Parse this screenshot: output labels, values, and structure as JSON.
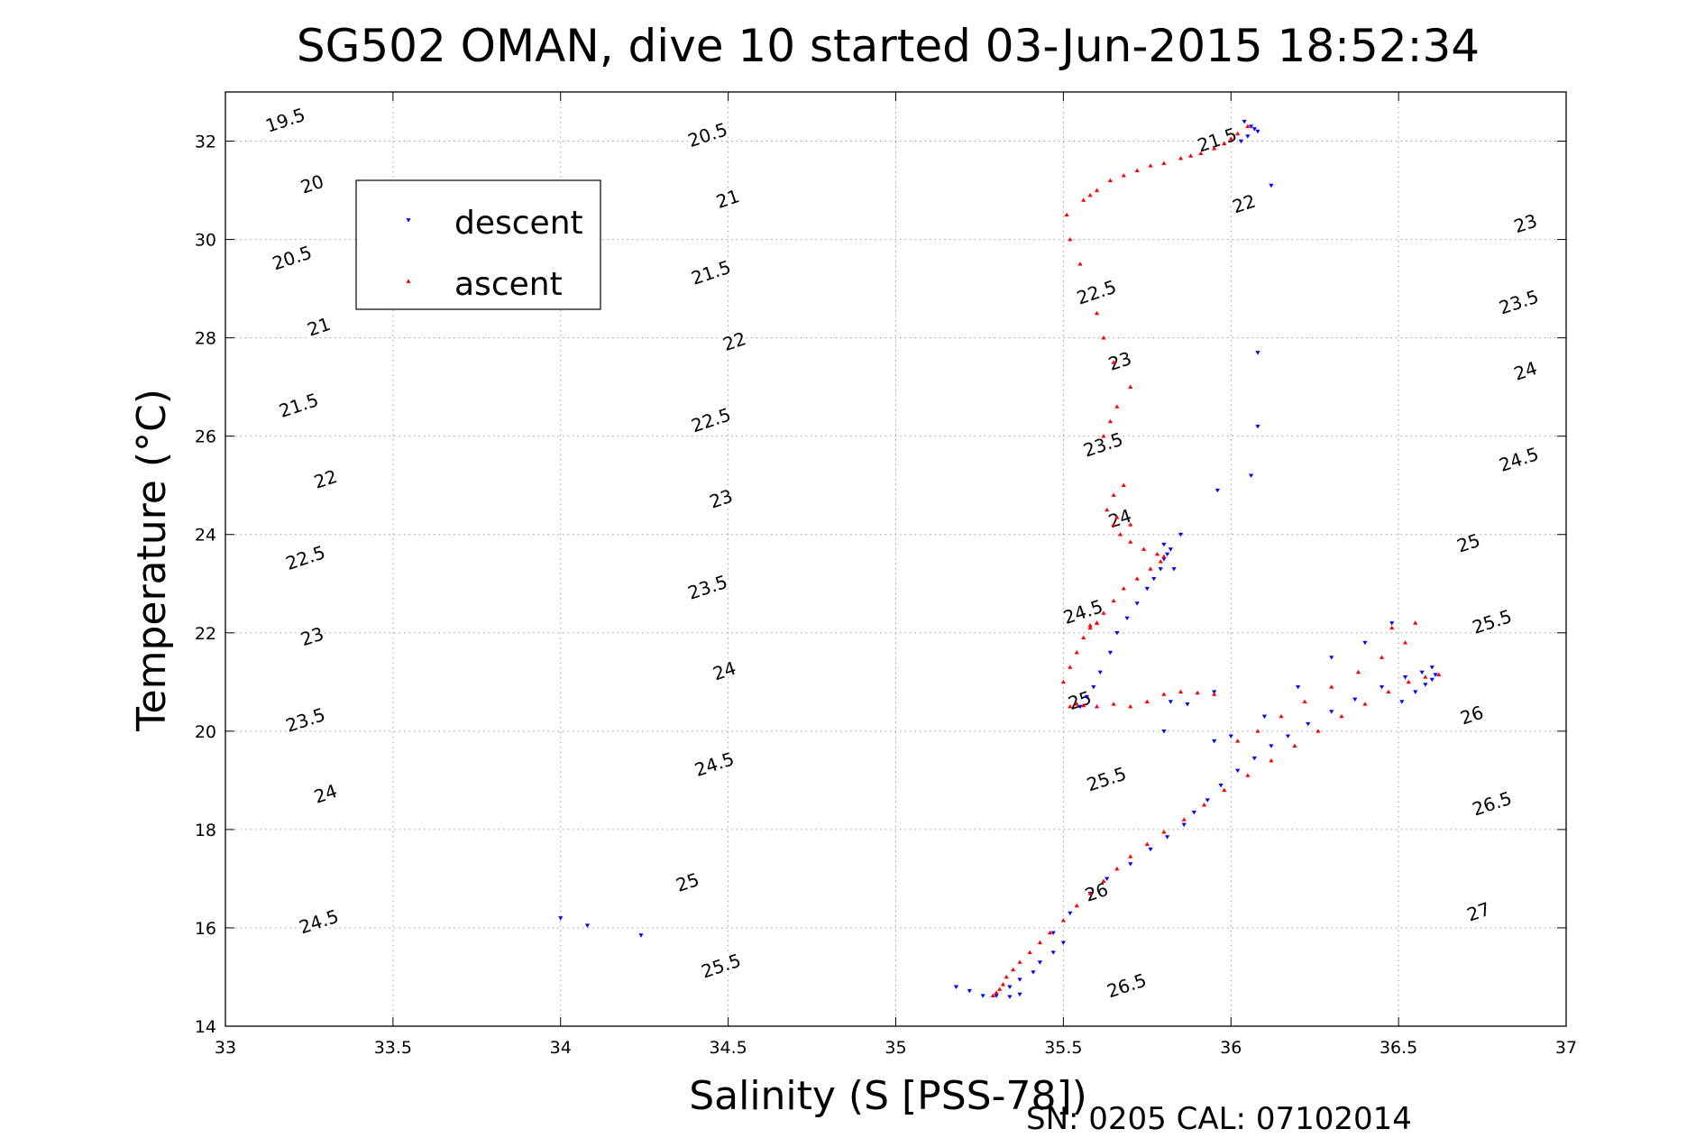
{
  "chart_data": {
    "type": "scatter",
    "title": "SG502 OMAN, dive 10 started 03-Jun-2015 18:52:34",
    "xlabel": "Salinity (S [PSS-78])",
    "ylabel": "Temperature (°C)",
    "footer": "SN: 0205  CAL: 07102014",
    "xlim": [
      33,
      37
    ],
    "ylim": [
      14,
      33
    ],
    "xticks": [
      33,
      33.5,
      34,
      34.5,
      35,
      35.5,
      36,
      36.5,
      37
    ],
    "xtick_labels": [
      "33",
      "33.5",
      "34",
      "34.5",
      "35",
      "35.5",
      "36",
      "36.5",
      "37"
    ],
    "yticks": [
      14,
      16,
      18,
      20,
      22,
      24,
      26,
      28,
      30,
      32
    ],
    "ytick_labels": [
      "14",
      "16",
      "18",
      "20",
      "22",
      "24",
      "26",
      "28",
      "30",
      "32"
    ],
    "grid": true,
    "legend_position": "top-left",
    "contours": {
      "name": "density (sigma-t) isolines",
      "color": "#000000",
      "levels": [
        19.5,
        20,
        20.5,
        21,
        21.5,
        22,
        22.5,
        23,
        23.5,
        24,
        24.5,
        25,
        25.5,
        26,
        26.5,
        27
      ],
      "level_labels": [
        "19.5",
        "20",
        "20.5",
        "21",
        "21.5",
        "22",
        "22.5",
        "23",
        "23.5",
        "24",
        "24.5",
        "25",
        "25.5",
        "26",
        "26.5",
        "27"
      ],
      "labels": [
        {
          "text": "19.5",
          "x": 33.18,
          "y": 32.4
        },
        {
          "text": "20",
          "x": 33.26,
          "y": 31.1
        },
        {
          "text": "20.5",
          "x": 33.2,
          "y": 29.6
        },
        {
          "text": "21",
          "x": 33.28,
          "y": 28.2
        },
        {
          "text": "21.5",
          "x": 33.22,
          "y": 26.6
        },
        {
          "text": "22",
          "x": 33.3,
          "y": 25.1
        },
        {
          "text": "22.5",
          "x": 33.24,
          "y": 23.5
        },
        {
          "text": "23",
          "x": 33.26,
          "y": 21.9
        },
        {
          "text": "23.5",
          "x": 33.24,
          "y": 20.2
        },
        {
          "text": "24",
          "x": 33.3,
          "y": 18.7
        },
        {
          "text": "24.5",
          "x": 33.28,
          "y": 16.1
        },
        {
          "text": "20.5",
          "x": 34.44,
          "y": 32.1
        },
        {
          "text": "21",
          "x": 34.5,
          "y": 30.8
        },
        {
          "text": "21.5",
          "x": 34.45,
          "y": 29.3
        },
        {
          "text": "22",
          "x": 34.52,
          "y": 27.9
        },
        {
          "text": "22.5",
          "x": 34.45,
          "y": 26.3
        },
        {
          "text": "23",
          "x": 34.48,
          "y": 24.7
        },
        {
          "text": "23.5",
          "x": 34.44,
          "y": 22.9
        },
        {
          "text": "24",
          "x": 34.49,
          "y": 21.2
        },
        {
          "text": "24.5",
          "x": 34.46,
          "y": 19.3
        },
        {
          "text": "25",
          "x": 34.38,
          "y": 16.9
        },
        {
          "text": "25.5",
          "x": 34.48,
          "y": 15.2
        },
        {
          "text": "21.5",
          "x": 35.96,
          "y": 32.0
        },
        {
          "text": "22",
          "x": 36.04,
          "y": 30.7
        },
        {
          "text": "22.5",
          "x": 35.6,
          "y": 28.9
        },
        {
          "text": "23",
          "x": 35.67,
          "y": 27.5
        },
        {
          "text": "23.5",
          "x": 35.62,
          "y": 25.8
        },
        {
          "text": "24",
          "x": 35.67,
          "y": 24.3
        },
        {
          "text": "24.5",
          "x": 35.56,
          "y": 22.4
        },
        {
          "text": "25",
          "x": 35.55,
          "y": 20.6
        },
        {
          "text": "25.5",
          "x": 35.63,
          "y": 19.0
        },
        {
          "text": "26",
          "x": 35.6,
          "y": 16.7
        },
        {
          "text": "26.5",
          "x": 35.69,
          "y": 14.8
        },
        {
          "text": "23",
          "x": 36.88,
          "y": 30.3
        },
        {
          "text": "23.5",
          "x": 36.86,
          "y": 28.7
        },
        {
          "text": "24",
          "x": 36.88,
          "y": 27.3
        },
        {
          "text": "24.5",
          "x": 36.86,
          "y": 25.5
        },
        {
          "text": "25",
          "x": 36.71,
          "y": 23.8
        },
        {
          "text": "25.5",
          "x": 36.78,
          "y": 22.2
        },
        {
          "text": "26",
          "x": 36.72,
          "y": 20.3
        },
        {
          "text": "26.5",
          "x": 36.78,
          "y": 18.5
        },
        {
          "text": "27",
          "x": 36.74,
          "y": 16.3
        }
      ]
    },
    "series": [
      {
        "name": "descent",
        "color": "#0000ff",
        "marker": "triangle-down",
        "x": [
          34.0,
          34.08,
          34.24,
          35.18,
          35.22,
          35.26,
          35.3,
          35.34,
          35.37,
          35.34,
          35.37,
          35.41,
          35.43,
          35.47,
          35.5,
          35.47,
          35.52,
          35.58,
          35.63,
          35.7,
          35.76,
          35.81,
          35.86,
          35.89,
          35.93,
          35.97,
          36.02,
          36.07,
          36.12,
          36.17,
          36.23,
          36.3,
          36.37,
          36.45,
          36.52,
          36.57,
          36.6,
          36.61,
          36.58,
          36.55,
          36.51,
          36.6,
          36.48,
          36.4,
          36.3,
          36.2,
          36.1,
          36.0,
          35.95,
          35.55,
          35.57,
          35.59,
          35.61,
          35.64,
          35.66,
          35.69,
          35.72,
          35.75,
          35.77,
          35.79,
          35.8,
          35.81,
          35.82,
          35.8,
          35.83,
          35.85,
          35.96,
          36.06,
          36.08,
          36.08,
          36.04,
          36.06,
          36.08,
          36.12,
          36.03,
          36.05,
          36.07,
          35.8,
          35.95,
          35.87,
          35.82
        ],
        "y": [
          16.2,
          16.05,
          15.85,
          14.8,
          14.72,
          14.62,
          14.62,
          14.6,
          14.65,
          14.8,
          14.95,
          15.1,
          15.3,
          15.5,
          15.7,
          15.9,
          16.3,
          16.7,
          17.0,
          17.3,
          17.6,
          17.85,
          18.1,
          18.35,
          18.6,
          18.9,
          19.2,
          19.45,
          19.7,
          19.9,
          20.15,
          20.4,
          20.65,
          20.9,
          21.1,
          21.2,
          21.3,
          21.15,
          20.95,
          20.8,
          20.6,
          21.05,
          22.2,
          21.8,
          21.5,
          20.9,
          20.3,
          19.9,
          19.8,
          20.5,
          20.7,
          20.9,
          21.2,
          21.6,
          22.0,
          22.3,
          22.6,
          22.9,
          23.1,
          23.3,
          23.5,
          23.6,
          23.7,
          23.8,
          23.3,
          24.0,
          24.9,
          25.2,
          26.2,
          27.7,
          32.4,
          32.3,
          32.2,
          31.1,
          32.0,
          32.1,
          32.25,
          20.0,
          20.8,
          20.55,
          20.6
        ]
      },
      {
        "name": "ascent",
        "color": "#ff0000",
        "marker": "triangle-up",
        "x": [
          35.29,
          35.3,
          35.31,
          35.32,
          35.33,
          35.35,
          35.37,
          35.4,
          35.43,
          35.46,
          35.5,
          35.54,
          35.58,
          35.62,
          35.66,
          35.7,
          35.75,
          35.8,
          35.86,
          35.92,
          35.98,
          36.05,
          36.12,
          36.19,
          36.26,
          36.33,
          36.4,
          36.47,
          36.53,
          36.58,
          36.62,
          36.55,
          36.48,
          36.52,
          36.45,
          36.38,
          36.3,
          36.22,
          36.15,
          36.08,
          36.02,
          35.52,
          35.54,
          35.56,
          35.6,
          35.65,
          35.7,
          35.75,
          35.8,
          35.85,
          35.9,
          35.95,
          35.5,
          35.52,
          35.54,
          35.56,
          35.58,
          35.6,
          35.62,
          35.65,
          35.68,
          35.72,
          35.76,
          35.79,
          35.8,
          35.78,
          35.74,
          35.7,
          35.67,
          35.65,
          35.63,
          35.65,
          35.68,
          35.62,
          35.64,
          35.66,
          35.7,
          35.65,
          35.62,
          35.6,
          35.55,
          35.52,
          35.51,
          35.56,
          35.58,
          35.6,
          35.64,
          35.68,
          35.72,
          35.76,
          35.8,
          35.85,
          35.88,
          35.91,
          35.95,
          35.98,
          36.0,
          36.02,
          36.05,
          35.7,
          35.66,
          35.6,
          35.58
        ],
        "y": [
          14.62,
          14.68,
          14.75,
          14.85,
          15.0,
          15.15,
          15.3,
          15.5,
          15.7,
          15.9,
          16.15,
          16.45,
          16.7,
          16.95,
          17.2,
          17.45,
          17.7,
          17.95,
          18.2,
          18.5,
          18.8,
          19.1,
          19.4,
          19.7,
          20.0,
          20.3,
          20.55,
          20.8,
          21.0,
          21.1,
          21.15,
          22.2,
          22.1,
          21.8,
          21.5,
          21.2,
          20.9,
          20.6,
          20.3,
          20.0,
          19.8,
          20.5,
          20.55,
          20.52,
          20.5,
          20.55,
          20.5,
          20.6,
          20.75,
          20.8,
          20.78,
          20.75,
          21.0,
          21.3,
          21.6,
          21.9,
          22.1,
          22.2,
          22.4,
          22.65,
          22.9,
          23.1,
          23.3,
          23.45,
          23.55,
          23.6,
          23.7,
          23.85,
          24.0,
          24.2,
          24.5,
          24.8,
          25.0,
          26.0,
          26.3,
          26.6,
          27.0,
          27.5,
          28.0,
          28.5,
          29.5,
          30.0,
          30.5,
          30.8,
          30.9,
          31.0,
          31.2,
          31.3,
          31.4,
          31.5,
          31.55,
          31.65,
          31.7,
          31.75,
          31.85,
          31.95,
          32.05,
          32.15,
          32.3,
          24.2,
          24.35,
          22.2,
          22.15
        ]
      }
    ]
  }
}
